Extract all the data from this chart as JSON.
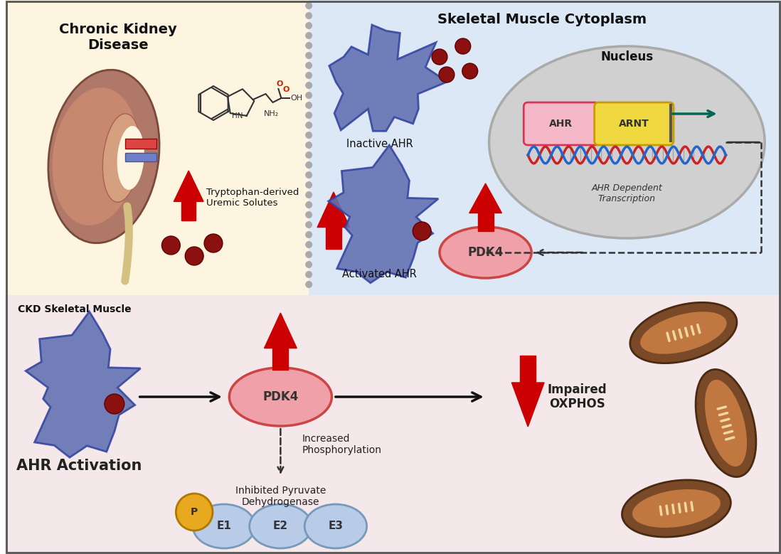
{
  "bg_top_left": "#fdf5e0",
  "bg_top_right": "#dce8f5",
  "bg_bottom": "#f5e8ea",
  "red_arrow_color": "#cc0000",
  "text_title_ckd": "Chronic Kidney\nDisease",
  "text_cytoplasm": "Skeletal Muscle Cytoplasm",
  "text_ckd_skeletal": "CKD Skeletal Muscle",
  "text_ahr_activation": "AHR Activation",
  "text_tryptophan": "Tryptophan-derived\nUremic Solutes",
  "text_inactive_ahr": "Inactive AHR",
  "text_activated_ahr": "Activated AHR",
  "text_nucleus": "Nucleus",
  "text_ahr_dep": "AHR Dependent\nTranscription",
  "text_pdk4": "PDK4",
  "text_increased_phos": "Increased\nPhosphorylation",
  "text_inhibited": "Inhibited Pyruvate\nDehydrogenase",
  "text_impaired": "Impaired\nOXPHOS",
  "text_e1": "E1",
  "text_e2": "E2",
  "text_e3": "E3",
  "text_ahr": "AHR",
  "text_arnt": "ARNT",
  "nucleus_bg": "#d0d0d0",
  "pdk4_fill": "#f0a0a8",
  "pdk4_edge": "#cc4444",
  "ahr_fill": "#f5b8c8",
  "arnt_fill": "#f0d840",
  "e_fill": "#b8cce8",
  "e_edge": "#7799bb",
  "p_fill": "#e8a820",
  "p_edge": "#b07800",
  "membrane_dot_color": "#aaaaaa",
  "blob_fill": "#6070b0",
  "blob_edge": "#3344a0",
  "dot_fill": "#8b1010",
  "dot_edge": "#600000"
}
